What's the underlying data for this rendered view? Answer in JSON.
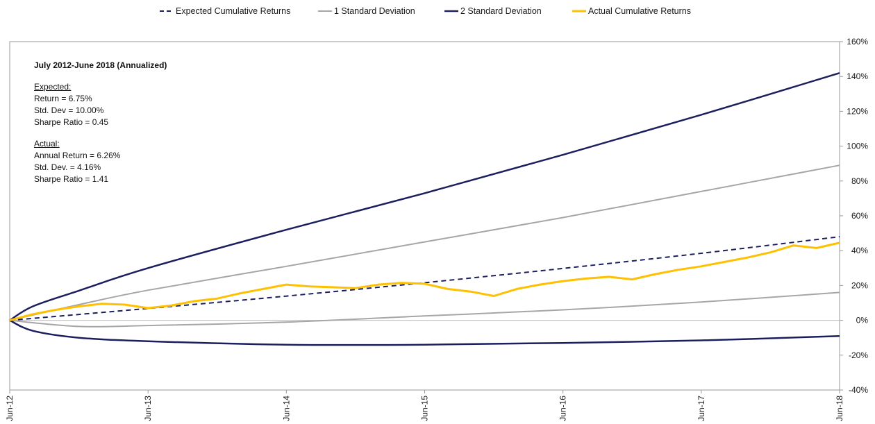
{
  "chart_data": {
    "type": "line",
    "legend": {
      "placement": "top",
      "entries": [
        {
          "label": "Expected Cumulative Returns",
          "style": "dashed",
          "color": "#1b1f5e"
        },
        {
          "label": "1 Standard Deviation",
          "style": "solid",
          "color": "#a6a6a6"
        },
        {
          "label": "2 Standard Deviation",
          "style": "solid",
          "color": "#1b1f5e"
        },
        {
          "label": "Actual Cumulative Returns",
          "style": "solid",
          "color": "#ffc000"
        }
      ]
    },
    "x_ticks": [
      "Jun-12",
      "Jun-13",
      "Jun-14",
      "Jun-15",
      "Jun-16",
      "Jun-17",
      "Jun-18"
    ],
    "y_ticks": [
      "160%",
      "140%",
      "120%",
      "100%",
      "80%",
      "60%",
      "40%",
      "20%",
      "0%",
      "-20%",
      "-40%"
    ],
    "ylim": [
      -40,
      160
    ],
    "xlim": [
      "Jun-12",
      "Jun-18"
    ],
    "grid": false,
    "y_axis_side": "right",
    "annotation": {
      "heading": "July 2012-June 2018 (Annualized)",
      "expected_title": "Expected:",
      "expected_lines": [
        "Return = 6.75%",
        "Std. Dev = 10.00%",
        "Sharpe Ratio = 0.45"
      ],
      "actual_title": "Actual:",
      "actual_lines": [
        "Annual Return = 6.26%",
        "Std. Dev.  = 4.16%",
        "Sharpe Ratio = 1.41"
      ]
    },
    "series": [
      {
        "name": "Expected Cumulative Returns",
        "x": [
          "Jun-12",
          "Jun-13",
          "Jun-14",
          "Jun-15",
          "Jun-16",
          "Jun-17",
          "Jun-18"
        ],
        "values": [
          0,
          6.8,
          13.9,
          21.6,
          29.8,
          38.5,
          48.0
        ]
      },
      {
        "name": "1 Standard Deviation (upper)",
        "x": [
          "Jun-12",
          "Dec-12",
          "Jun-13",
          "Jun-14",
          "Jun-15",
          "Jun-16",
          "Jun-17",
          "Jun-18"
        ],
        "values": [
          0,
          9,
          17.3,
          31,
          45,
          59,
          74,
          89
        ]
      },
      {
        "name": "1 Standard Deviation (lower)",
        "x": [
          "Jun-12",
          "Dec-12",
          "Jun-13",
          "Jun-14",
          "Jun-15",
          "Jun-16",
          "Jun-17",
          "Jun-18"
        ],
        "values": [
          0,
          -3.5,
          -3,
          -1,
          2.5,
          6,
          10.5,
          16
        ]
      },
      {
        "name": "2 Standard Deviation (upper)",
        "x": [
          "Jun-12",
          "Aug-12",
          "Dec-12",
          "Jun-13",
          "Jun-14",
          "Jun-15",
          "Jun-16",
          "Jun-17",
          "Jun-18"
        ],
        "values": [
          0,
          8,
          17,
          30,
          52,
          73,
          95,
          118,
          142
        ]
      },
      {
        "name": "2 Standard Deviation (lower)",
        "x": [
          "Jun-12",
          "Aug-12",
          "Dec-12",
          "Jun-13",
          "Jun-14",
          "Jun-15",
          "Jun-16",
          "Jun-17",
          "Jun-18"
        ],
        "values": [
          0,
          -6,
          -10,
          -12,
          -14,
          -14,
          -13,
          -11.5,
          -9
        ]
      },
      {
        "name": "Actual Cumulative Returns",
        "x": [
          "Jun-12",
          "Aug-12",
          "Oct-12",
          "Dec-12",
          "Feb-13",
          "Apr-13",
          "Jun-13",
          "Aug-13",
          "Oct-13",
          "Dec-13",
          "Feb-14",
          "Apr-14",
          "Jun-14",
          "Aug-14",
          "Oct-14",
          "Dec-14",
          "Feb-15",
          "Apr-15",
          "Jun-15",
          "Aug-15",
          "Oct-15",
          "Dec-15",
          "Feb-16",
          "Apr-16",
          "Jun-16",
          "Aug-16",
          "Oct-16",
          "Dec-16",
          "Feb-17",
          "Apr-17",
          "Jun-17",
          "Aug-17",
          "Oct-17",
          "Dec-17",
          "Feb-18",
          "Apr-18",
          "Jun-18"
        ],
        "values": [
          0,
          3.5,
          6,
          8,
          9.5,
          9,
          7,
          8.5,
          11,
          12.5,
          15.5,
          18,
          20.5,
          19.5,
          19,
          18.5,
          20.5,
          21.5,
          21,
          18,
          16.5,
          14,
          18,
          20.5,
          22.5,
          24,
          25,
          23.5,
          26.5,
          29,
          31,
          33.5,
          36,
          39,
          43,
          41.5,
          44.5
        ]
      }
    ]
  }
}
